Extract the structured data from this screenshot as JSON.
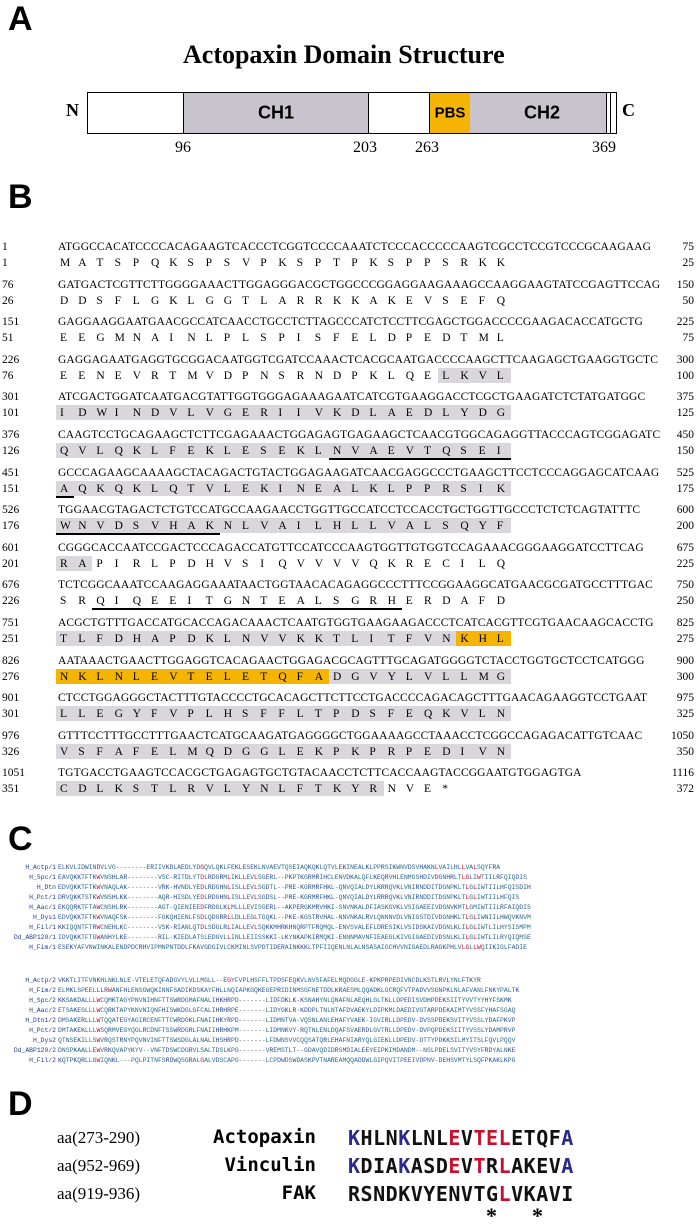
{
  "panels": {
    "a": "A",
    "b": "B",
    "c": "C",
    "d": "D"
  },
  "domain": {
    "title": "Actopaxin Domain Structure",
    "n_term": "N",
    "c_term": "C",
    "ch1": "CH1",
    "ch2": "CH2",
    "pbs": "PBS",
    "positions": [
      "96",
      "203",
      "263",
      "369"
    ],
    "colors": {
      "ch": "#c8c3cc",
      "pbs": "#f4b400",
      "white": "#ffffff"
    }
  },
  "sequence": [
    {
      "n1": "1",
      "nt": "ATGGCCACATCCCCACAGAAGTCACCCTCGGTCCCCAAATCTCCCACCCCCAAGTCGCCTCCGTCCCGCAAGAAG",
      "e1": "75",
      "n2": "1",
      "aa": "M   A   T   S   P   Q   K   S   P   S   V   P   K   S   P   T   P   K   S   P   P   S   R   K   K",
      "e2": "25"
    },
    {
      "n1": "76",
      "nt": "GATGACTCGTTCTTGGGGAAACTTGGAGGGACGCTGGCCCGGAGGAAGAAAGCCAAGGAAGTATCCGAGTTCCAG",
      "e1": "150",
      "n2": "26",
      "aa": "D   D   S   F   L   G   K   L   G   G   T   L   A   R   R   K   K   A   K   E   V   S   E   F   Q",
      "e2": "50"
    },
    {
      "n1": "151",
      "nt": "GAGGAAGGAATGAACGCCATCAACCTGCCTCTTAGCCCATCTCCTTCGAGCTGGACCCCGAAGACACCATGCTG",
      "e1": "225",
      "n2": "51",
      "aa": "E   E   G   M   N   A   I   N   L   P   L   S   P   I   S   F   E   L   D   P   E   D   T   M   L",
      "e2": "75"
    },
    {
      "n1": "226",
      "nt": "GAGGAGAATGAGGTGCGGACAATGGTCGATCCAAACTCACGCAATGACCCCAAGCTTCAAGAGCTGAAGGTGCTC",
      "e1": "300",
      "n2": "76",
      "aa": "E   E   N   E   V   R   T   M   V   D   P   N   S   R   N   D   P   K   L   Q   E   L   K   V   L",
      "e2": "100"
    },
    {
      "n1": "301",
      "nt": "ATCGACTGGATCAATGACGTATTGGTGGGAGAAAGAATCATCGTGAAGGACCTCGCTGAAGATCTCTATGATGGC",
      "e1": "375",
      "n2": "101",
      "aa": "I   D   W   I   N   D   V   L   V   G   E   R   I   I   V   K   D   L   A   E   D   L   Y   D   G",
      "e2": "125"
    },
    {
      "n1": "376",
      "nt": "CAAGTCCTGCAGAAGCTCTTCGAGAAACTGGAGAGTGAGAAGCTCAACGTGGCAGAGGTTACCCAGTCGGAGATC",
      "e1": "450",
      "n2": "126",
      "aa": "Q   V   L   Q   K   L   F   E   K   L   E   S   E   K   L   N   V   A   E   V   T   Q   S   E   I",
      "e2": "150"
    },
    {
      "n1": "451",
      "nt": "GCCCAGAAGCAAAAGCTACAGACTGTACTGGAGAAGATCAACGAGGCCCTGAAGCTTCCTCCCAGGAGCATCAAG",
      "e1": "525",
      "n2": "151",
      "aa": "A   Q   K   Q   K   L   Q   T   V   L   E   K   I   N   E   A   L   K   L   P   P   R   S   I   K",
      "e2": "175"
    },
    {
      "n1": "526",
      "nt": "TGGAACGTAGACTCTGTCCATGCCAAGAACCTGGTTGCCATCCTCCACCTGCTGGTTGCCCTCTCTCAGTATTTC",
      "e1": "600",
      "n2": "176",
      "aa": "W   N   V   D   S   V   H   A   K   N   L   V   A   I   L   H   L   L   V   A   L   S   Q   Y   F",
      "e2": "200"
    },
    {
      "n1": "601",
      "nt": "CGGGCACCAATCCGACTCCCAGACCATGTTCCATCCCAAGTGGTTGTGGTCCAGAAACGGGAAGGATCCTTCAG",
      "e1": "675",
      "n2": "201",
      "aa": "R   A   P   I   R   L   P   D   H   V   S   I   Q   V   V   V   V   Q   K   R   E   C   I   L   Q",
      "e2": "225"
    },
    {
      "n1": "676",
      "nt": "TCTCGGCAAATCCAAGAGGAAATAACTGGTAACACAGAGGCCCTTTCCGGAAGGCATGAACGCGATGCCTTTGAC",
      "e1": "750",
      "n2": "226",
      "aa": "S   R   Q   I   Q   E   E   I   T   G   N   T   E   A   L   S   G   R   H   E   R   D   A   F   D",
      "e2": "250"
    },
    {
      "n1": "751",
      "nt": "ACGCTGTTTGACCATGCACCAGACAAACTCAATGTGGTGAAGAAGACCCTCATCACGTTCGTGAACAAGCACCTG",
      "e1": "825",
      "n2": "251",
      "aa": "T   L   F   D   H   A   P   D   K   L   N   V   V   K   K   T   L   I   T   F   V   N   K   H   L",
      "e2": "275"
    },
    {
      "n1": "826",
      "nt": "AATAAACTGAACTTGGAGGTCACAGAACTGGAGACGCAGTTTGCAGATGGGGTCTACCTGGTGCTCCTCATGGG",
      "e1": "900",
      "n2": "276",
      "aa": "N   K   L   N   L   E   V   T   E   L   E   T   Q   F   A   D   G   V   Y   L   V   L   L   M   G",
      "e2": "300"
    },
    {
      "n1": "901",
      "nt": "CTCCTGGAGGGCTACTTTGTACCCCTGCACAGCTTCTTCCTGACCCCAGACAGCTTTGAACAGAAGGTCCTGAAT",
      "e1": "975",
      "n2": "301",
      "aa": "L   L   E   G   Y   F   V   P   L   H   S   F   F   L   T   P   D   S   F   E   Q   K   V   L   N",
      "e2": "325"
    },
    {
      "n1": "976",
      "nt": "GTTTCCTTTGCCTTTGAACTCATGCAAGATGAGGGGCTGGAAAAGCCTAAACCTCGGCCAGAGACATTGTCAAC",
      "e1": "1050",
      "n2": "326",
      "aa": "V   S   F   A   F   E   L   M   Q   D   G   G   L   E   K   P   K   P   R   P   E   D   I   V   N",
      "e2": "350"
    },
    {
      "n1": "1051",
      "nt": "TGTGACCTGAAGTCCACGCTGAGAGTGCTGTACAACCTCTTCACCAAGTACCGGAATGTGGAGTGA",
      "e1": "1116",
      "n2": "351",
      "aa": "C   D   L   K   S   T   L   R   V   L   Y   N   L   F   T   K   Y   R   N   V   E   *",
      "e2": "372"
    }
  ],
  "alignment1": [
    {
      "name": "H_Actp/1",
      "seq": "ELKVLIDWINDVLVG--------ERIIVKDLAEDLYDGQVLQKLFEKLESEKLNVAEVTQSEIAQKQKLQTVLEKINEALKLPPRSIKWNVDSVHAKNLVAILHLLVALSQYFRA"
    },
    {
      "name": "H_Spc/1",
      "seq": "EAVQKKTFTKWVNSHLAR--------VSC-RITDLYTDLRDGRMLIKLLEVLSGERL--PKPTKGRMRIHCLENVDKALQFLKEQRVHLENMGSHDIVDGNHRLTLGLIWTIILRFQIQDIS"
    },
    {
      "name": "H_Dtn",
      "seq": "EDVQKKTFTKWVNAQLAK--------VRK-HVNDLYEDLRDGHNLISLLEVLSGDTL--PRE-KGRMRFHKL-QNVQIALDYLKRRQVKLVNIRNDDITDGNPKLTLGLIWTIILHFQISDIH"
    },
    {
      "name": "H_Pct/1",
      "seq": "DRVQKKTSTKWVNSHLKK--------AQR-HISDLYEDLRDGHNLISLLEVLSGDSL--PRE-KGRMRFHKL-QNVQIALDYLRRRQVKLVNIRNDDITDGNPKLTLGLIWTIILHFQIS"
    },
    {
      "name": "H_Aac/1",
      "seq": "EKQQRKTFTAWCNSHLRK--------AGT-QIENIEEDFRDGLKLMLLLEVISGERL--AKPERGKMRVHKI-SNVNKALDFIASKGVKLVSIGAEEIVDGNVKMTLGMIWTIILRFAIQDIS"
    },
    {
      "name": "H_Dys1",
      "seq": "EDVQKKTFTKWVNAQFSK--------FGKQHIENLFSDLQDGRRLLDLLEGLTGQKL--PKE-KGSTRVHAL-NNVNKALRVLQNNNVDLVNIGSTDIVDGNHKLTLGLIWNIILHWQVKNVM"
    },
    {
      "name": "H_Fil/1",
      "seq": "KKIQQNTFTRWCNEHLKC--------VSK-RIANLQTDLSDGLRLIALLEVLSQKKMHRKHNQRPTFRQMQL-ENVSVALEFLDRESIKLVSIDSKAIVDGNLKLILGLIWTLILHYSISMPM"
    },
    {
      "name": "Dd_ABP120/1",
      "seq": "IDVQKKTFTGWANHYLKE--------RIL-KIEDLATSLEDGVLLINLLEIISSKKI-LKYNKAPKIRMQKI-ENNNMAVNFIEAEGLKIVGIGAEDIVDSNLKLILGLIWTLILRYQIQMSE"
    },
    {
      "name": "H_Fim/1",
      "seq": "ESEKYAFVNWINKALENDPDCRHVIPMNPNTDDLFKAVGDGIVLCKMINLSVPDTIDERAINKKKLTPFIIQENLNLALNSASAIGCHVVNIGAEDLRAGKPHLVLGLLWQIIKIGLFADIE"
    }
  ],
  "alignment2": [
    {
      "name": "H_Actp/2",
      "seq": "VKKTLITFVNKHLNKLNLE-VTELETQFADGVYLVLLMGLL--EGYFVPLHSFFLTPDSFEQKVLNVSFAFELMQDGGLE-KPKPRPEDIVNCDLKSTLRVLYNLFTKYR"
    },
    {
      "name": "H_Fim/2",
      "seq": "ELMKLSPEELLLRWANFHLENSGWQKINNFSADIKDSKAYFHLLNQIAPKGQKEGEPRIDINMSGFNETDDLKRAESMLQQADKLGCRQFVTPADVVSGNPKLNLAFVANLFNKYPALTK"
    },
    {
      "name": "H_Spc/2",
      "seq": "KKSAKDALLLWCQMKTAGYPNVNIHNFTTSWRDGMAFNALIHKHRPD-------LIDFDKLK-KSNAHYNLQNAFNLAEQHLGLTKLLDPEDISVDHPDEKSIITYVVTYYHYFSKMK"
    },
    {
      "name": "H_Aac/2",
      "seq": "ETSAKEGLLLWCQRKTAPYKNVNIQNFHISWKDGLGFCALIHRHRPE-------LIDYGKLR-KDDPLTNLNTAFDVAEKYLDIPKMLDAEDIVGTARPDEKAIMTYVSSFYHAFSGAQ"
    },
    {
      "name": "H_Dtn1/2",
      "seq": "DMSAKERLLLWTQQATEGYAGIRCENFTTCWRDGKLFNAIIHKYRPD-------LIDMNTVA-VQSNLANLEHAFYVAEK-IGVIRLLDPEDV-DVSSPDEKSVITYVSSLYDAFPKVP"
    },
    {
      "name": "H_Pct/2",
      "seq": "DMTAKEKLLLWSQRMVEGYQGLRCDNFTSSWRDGRLFNAIIHRHKPM-------LIDMNKVY-RQTNLENLDQAFSVAERDLGVTRLLDPEDV-DVPQPDEKSIITYVSSLYDAMPRVP"
    },
    {
      "name": "H_Dys2",
      "seq": "QTNSEKILLSWVRQSTRNYPQVNVINFTTSWSDGLALNALIHSHRPD-------LFDWNSVVCQQSATQRLEHAFNIARYQLGIEKLLDPEDV-DTTYPDKKSILMYITSLFQVLPQQV"
    },
    {
      "name": "Dd_ABP120/2",
      "seq": "DNSPKAALLEWVRKQVAPYKYV--VNFTDSWCDGRVLSALTDSLKPG-------VREMSTLT--GDAVQDIDRSMDIALEEYEIPKIMDANDM--NSLPDELSVITYVSYFRDYALNKE"
    },
    {
      "name": "H_Fil/2",
      "seq": "KQTPKQRLLGWIQNKL---PQLPITNFSRDWQSGRALGALVDSCAPG-------LCPDWDSWDASKPVTNAREAMQQADDWLGIPQVITPEEIVDPNV-DEHSVMTYLSQFPKAKLKPG"
    }
  ],
  "motif": {
    "rows": [
      {
        "range": "aa(273-290)",
        "name": "Actopaxin",
        "seq": "KHLNKLNLEVTELETQFA"
      },
      {
        "range": "aa(952-969)",
        "name": "Vinculin",
        "seq": "KDIAKASDEVTRLAKEVA"
      },
      {
        "range": "aa(919-936)",
        "name": "FAK",
        "seq": "RSNDKVYENVTGLVKAVI"
      }
    ],
    "stars": [
      "*",
      "*"
    ],
    "colors": {
      "blue": "#2a2a8a",
      "red": "#c8102e",
      "black": "#111111"
    }
  }
}
